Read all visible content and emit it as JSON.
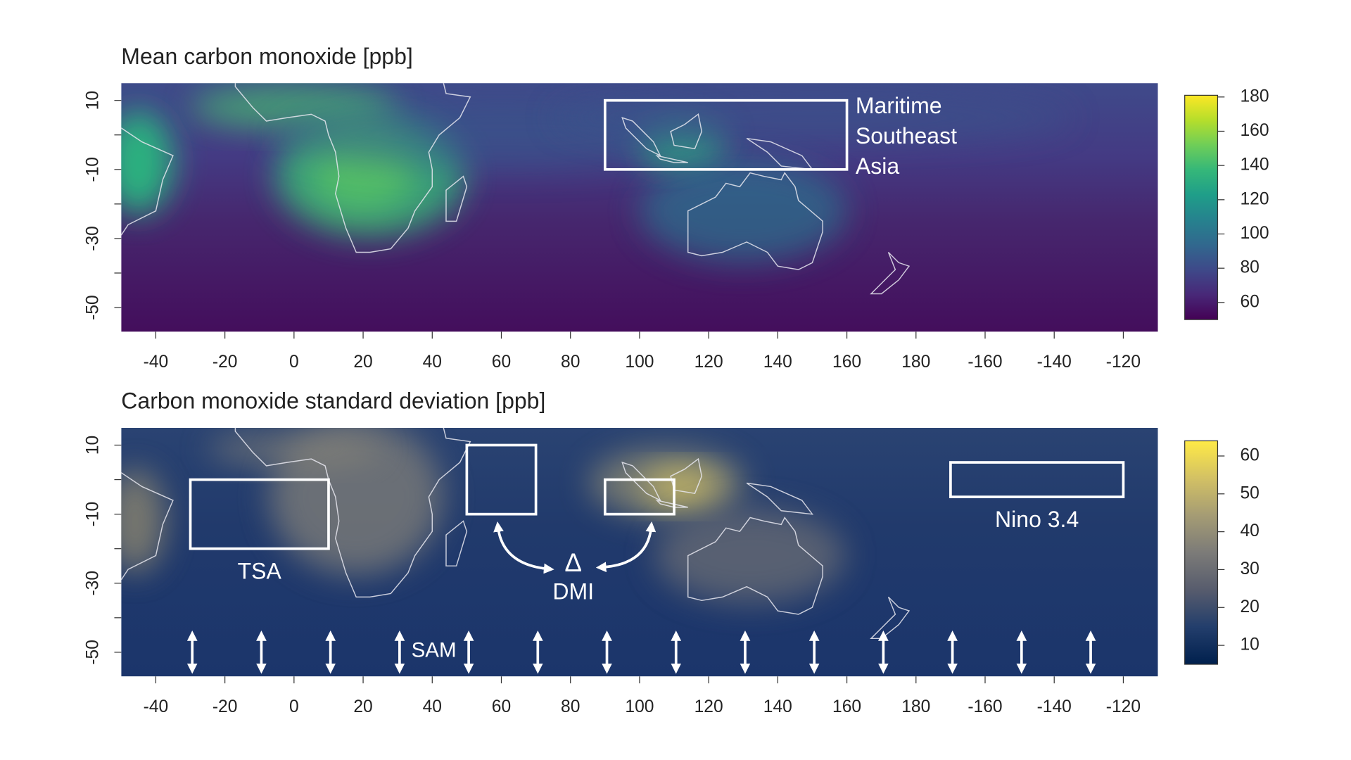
{
  "panels": [
    {
      "title": "Mean carbon monoxide [ppb]",
      "xlim": [
        -50,
        250
      ],
      "ylim": [
        -57,
        15
      ],
      "xticks": [
        -40,
        -20,
        0,
        20,
        40,
        60,
        80,
        100,
        120,
        140,
        160,
        180,
        {
          "value": 200,
          "label": "-160"
        },
        {
          "value": 220,
          "label": "-140"
        },
        {
          "value": 240,
          "label": "-120"
        }
      ],
      "yticks": [
        10,
        -10,
        -30,
        -50
      ],
      "yminor": [
        0,
        -20,
        -40
      ],
      "colorbar": {
        "lim": [
          50,
          181
        ],
        "ticks": [
          60,
          80,
          100,
          120,
          140,
          160,
          180
        ],
        "colors": [
          "#440154",
          "#482878",
          "#3e4989",
          "#31688e",
          "#26828e",
          "#1f9e89",
          "#35b779",
          "#6ece58",
          "#b5de2b",
          "#fde725"
        ]
      },
      "regions": [
        {
          "label": [
            "Maritime",
            "Southeast",
            "Asia"
          ],
          "lon": [
            90,
            160
          ],
          "lat": [
            -10,
            10
          ]
        }
      ]
    },
    {
      "title": "Carbon monoxide standard deviation [ppb]",
      "xlim": [
        -50,
        250
      ],
      "ylim": [
        -57,
        15
      ],
      "xticks": [
        -40,
        -20,
        0,
        20,
        40,
        60,
        80,
        100,
        120,
        140,
        160,
        180,
        {
          "value": 200,
          "label": "-160"
        },
        {
          "value": 220,
          "label": "-140"
        },
        {
          "value": 240,
          "label": "-120"
        }
      ],
      "yticks": [
        10,
        -10,
        -30,
        -50
      ],
      "yminor": [
        0,
        -20,
        -40
      ],
      "colorbar": {
        "lim": [
          5,
          64
        ],
        "ticks": [
          10,
          20,
          30,
          40,
          50,
          60
        ],
        "colors": [
          "#00204d",
          "#233e6c",
          "#575c6d",
          "#7c7b78",
          "#a59c74",
          "#d3c164",
          "#ffea46"
        ]
      },
      "regions": [
        {
          "label": "TSA",
          "lon": [
            -30,
            10
          ],
          "lat": [
            -20,
            0
          ]
        },
        {
          "lon": [
            50,
            70
          ],
          "lat": [
            -10,
            10
          ]
        },
        {
          "lon": [
            90,
            110
          ],
          "lat": [
            -10,
            0
          ]
        },
        {
          "label": "Nino 3.4",
          "lon": [
            190,
            240
          ],
          "lat": [
            -5,
            5
          ]
        }
      ],
      "dmi": {
        "symbol": "Δ",
        "label": "DMI"
      },
      "sam": {
        "label": "SAM"
      }
    }
  ]
}
